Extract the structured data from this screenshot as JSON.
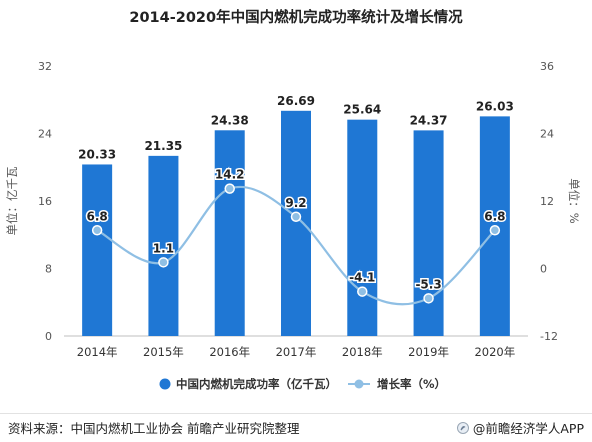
{
  "chart_data": {
    "type": "bar",
    "title": "2014-2020年中国内燃机完成功率统计及增长情况",
    "categories": [
      "2014年",
      "2015年",
      "2016年",
      "2017年",
      "2018年",
      "2019年",
      "2020年"
    ],
    "series": [
      {
        "name": "中国内燃机完成功率（亿千瓦）",
        "type": "bar",
        "axis": "left",
        "values": [
          20.33,
          21.35,
          24.38,
          26.69,
          25.64,
          24.37,
          26.03
        ],
        "labels": [
          "20.33",
          "21.35",
          "24.38",
          "26.69",
          "25.64",
          "24.37",
          "26.03"
        ]
      },
      {
        "name": "增长率（%）",
        "type": "line",
        "axis": "right",
        "values": [
          6.8,
          1.1,
          14.2,
          9.2,
          -4.1,
          -5.3,
          6.8
        ],
        "labels": [
          "6.8",
          "1.1",
          "14.2",
          "9.2",
          "-4.1",
          "-5.3",
          "6.8"
        ]
      }
    ],
    "ylabel": "单位：亿千瓦",
    "y2label": "单位：%",
    "ylim": [
      0,
      32
    ],
    "yticks": [
      "0",
      "8",
      "16",
      "24",
      "32"
    ],
    "y2lim": [
      -12,
      36
    ],
    "y2ticks": [
      "-12",
      "0",
      "12",
      "24",
      "36"
    ],
    "grid": false,
    "legend_position": "bottom"
  },
  "colors": {
    "bar": "#1f77d4",
    "line": "#8fbfe4",
    "axis_text": "#555555"
  },
  "source": {
    "text": "资料来源：中国内燃机工业协会 前瞻产业研究院整理",
    "brand": "@前瞻经济学人APP",
    "brand_icon": "qianzhan-logo-icon"
  }
}
